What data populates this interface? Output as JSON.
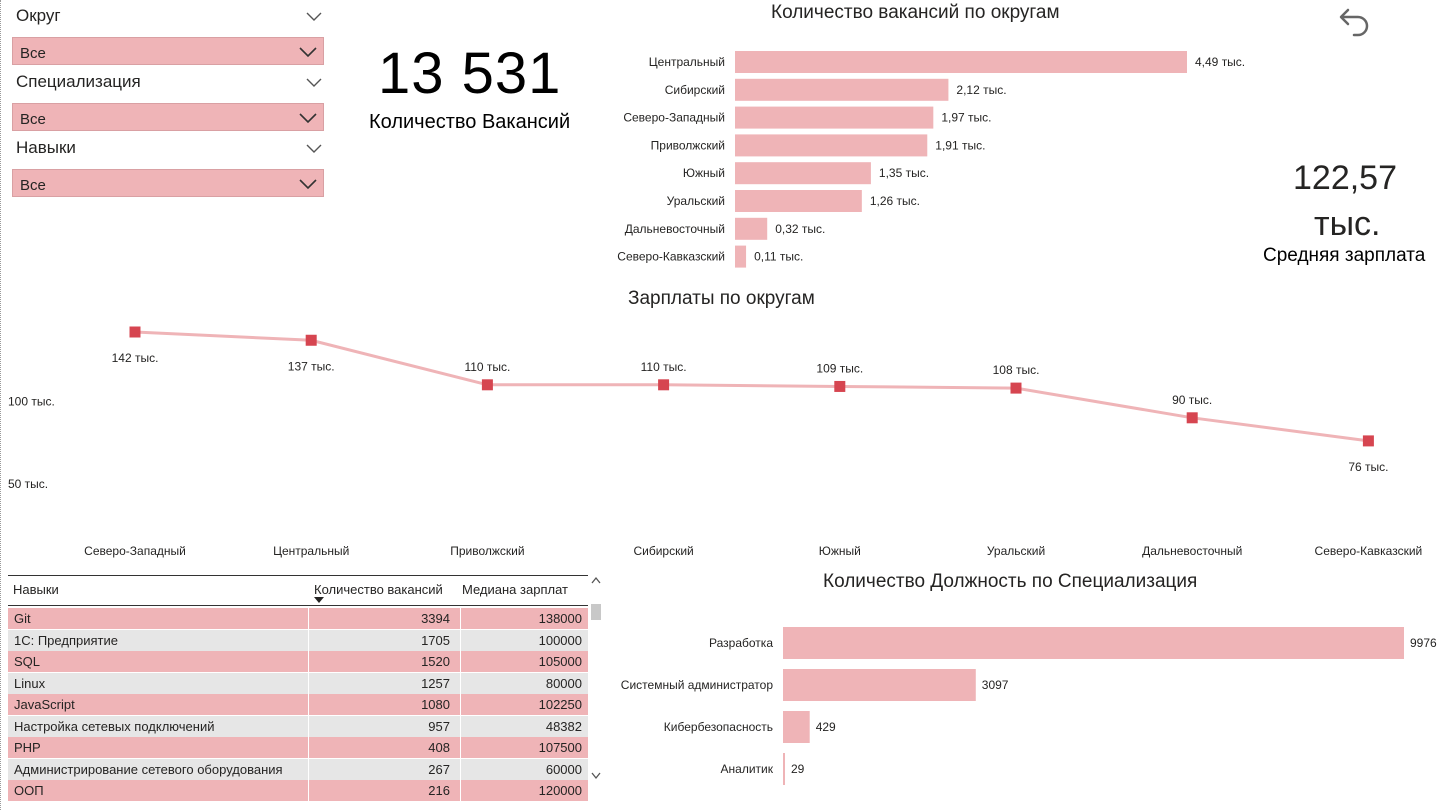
{
  "filters": [
    {
      "title": "Округ",
      "value": "Все"
    },
    {
      "title": "Специализация",
      "value": "Все"
    },
    {
      "title": "Навыки",
      "value": "Все"
    }
  ],
  "kpi_vacancies": {
    "value": "13 531",
    "label": "Количество Вакансий"
  },
  "kpi_salary": {
    "value_line1": "122,57",
    "value_line2": "тыс.",
    "label": "Средняя зарплата"
  },
  "toolbar": {
    "back_icon": "undo-arrow-icon"
  },
  "colors": {
    "bar": "#efb4b7",
    "line": "#efb4b7",
    "marker": "#d64550",
    "row_pink": "#efb4b7",
    "row_gray": "#e6e6e6"
  },
  "chart_data": [
    {
      "type": "bar",
      "orientation": "horizontal",
      "title": "Количество вакансий по округам",
      "categories": [
        "Центральный",
        "Сибирский",
        "Северо-Западный",
        "Приволжский",
        "Южный",
        "Уральский",
        "Дальневосточный",
        "Северо-Кавказский"
      ],
      "values": [
        4490,
        2120,
        1970,
        1910,
        1350,
        1260,
        320,
        110
      ],
      "data_labels": [
        "4,49 тыс.",
        "2,12 тыс.",
        "1,97 тыс.",
        "1,91 тыс.",
        "1,35 тыс.",
        "1,26 тыс.",
        "0,32 тыс.",
        "0,11 тыс."
      ],
      "xlim": [
        0,
        4490
      ]
    },
    {
      "type": "line",
      "title": "Зарплаты по округам",
      "categories": [
        "Северо-Западный",
        "Центральный",
        "Приволжский",
        "Сибирский",
        "Южный",
        "Уральский",
        "Дальневосточный",
        "Северо-Кавказский"
      ],
      "values": [
        142,
        137,
        110,
        110,
        109,
        108,
        90,
        76
      ],
      "data_labels": [
        "142 тыс.",
        "137 тыс.",
        "110 тыс.",
        "110 тыс.",
        "109 тыс.",
        "108 тыс.",
        "90 тыс.",
        "76 тыс."
      ],
      "y_ticks": [
        {
          "value": 100,
          "label": "100 тыс."
        },
        {
          "value": 50,
          "label": "50 тыс."
        }
      ],
      "ylim": [
        20,
        150
      ]
    },
    {
      "type": "bar",
      "orientation": "horizontal",
      "title": "Количество Должность по Специализация",
      "categories": [
        "Разработка",
        "Системный администратор",
        "Кибербезопасность",
        "Аналитик"
      ],
      "values": [
        9976,
        3097,
        429,
        29
      ],
      "data_labels": [
        "9976",
        "3097",
        "429",
        "29"
      ],
      "xlim": [
        0,
        9976
      ]
    },
    {
      "type": "table",
      "columns": [
        "Навыки",
        "Количество вакансий",
        "Медиана зарплат"
      ],
      "sort_column": 1,
      "rows": [
        [
          "Git",
          "3394",
          "138000"
        ],
        [
          "1С: Предприятие",
          "1705",
          "100000"
        ],
        [
          "SQL",
          "1520",
          "105000"
        ],
        [
          "Linux",
          "1257",
          "80000"
        ],
        [
          "JavaScript",
          "1080",
          "102250"
        ],
        [
          "Настройка сетевых подключений",
          "957",
          "48382"
        ],
        [
          "PHP",
          "408",
          "107500"
        ],
        [
          "Администрирование сетевого оборудования",
          "267",
          "60000"
        ],
        [
          "ООП",
          "216",
          "120000"
        ]
      ]
    }
  ]
}
